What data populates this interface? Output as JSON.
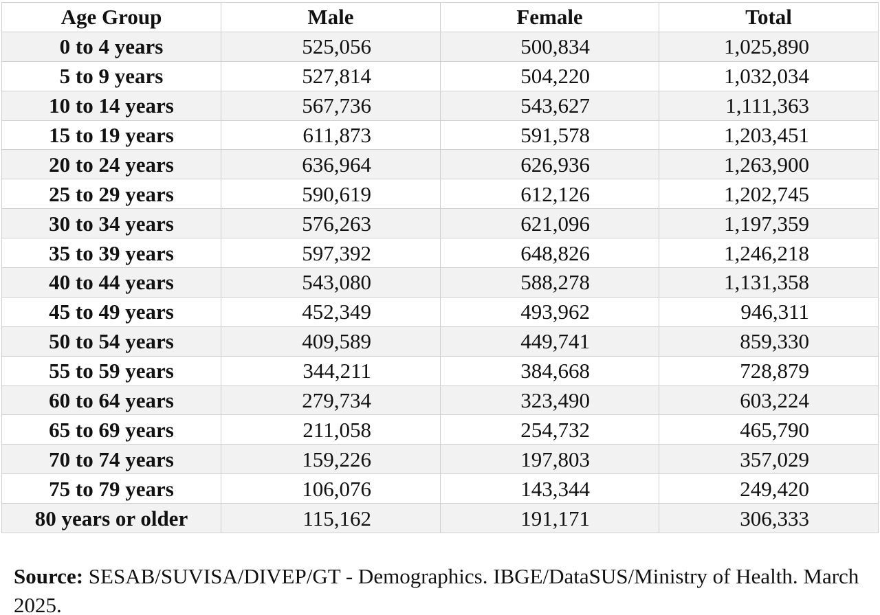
{
  "table": {
    "columns": [
      "Age Group",
      "Male",
      "Female",
      "Total"
    ],
    "rows": [
      [
        "0 to 4 years",
        "525,056",
        "500,834",
        "1,025,890"
      ],
      [
        "5 to 9 years",
        "527,814",
        "504,220",
        "1,032,034"
      ],
      [
        "10 to 14 years",
        "567,736",
        "543,627",
        "1,111,363"
      ],
      [
        "15 to 19 years",
        "611,873",
        "591,578",
        "1,203,451"
      ],
      [
        "20 to 24 years",
        "636,964",
        "626,936",
        "1,263,900"
      ],
      [
        "25 to 29 years",
        "590,619",
        "612,126",
        "1,202,745"
      ],
      [
        "30 to 34 years",
        "576,263",
        "621,096",
        "1,197,359"
      ],
      [
        "35 to 39 years",
        "597,392",
        "648,826",
        "1,246,218"
      ],
      [
        "40 to 44 years",
        "543,080",
        "588,278",
        "1,131,358"
      ],
      [
        "45 to 49 years",
        "452,349",
        "493,962",
        "946,311"
      ],
      [
        "50 to 54 years",
        "409,589",
        "449,741",
        "859,330"
      ],
      [
        "55 to 59 years",
        "344,211",
        "384,668",
        "728,879"
      ],
      [
        "60 to 64 years",
        "279,734",
        "323,490",
        "603,224"
      ],
      [
        "65 to 69 years",
        "211,058",
        "254,732",
        "465,790"
      ],
      [
        "70 to 74 years",
        "159,226",
        "197,803",
        "357,029"
      ],
      [
        "75 to 79 years",
        "106,076",
        "143,344",
        "249,420"
      ],
      [
        "80 years or older",
        "115,162",
        "191,171",
        "306,333"
      ]
    ]
  },
  "footer": {
    "source_label": "Source:",
    "source_text": "SESAB/SUVISA/DIVEP/GT - Demographics. IBGE/DataSUS/Ministry of Health. March 2025."
  }
}
